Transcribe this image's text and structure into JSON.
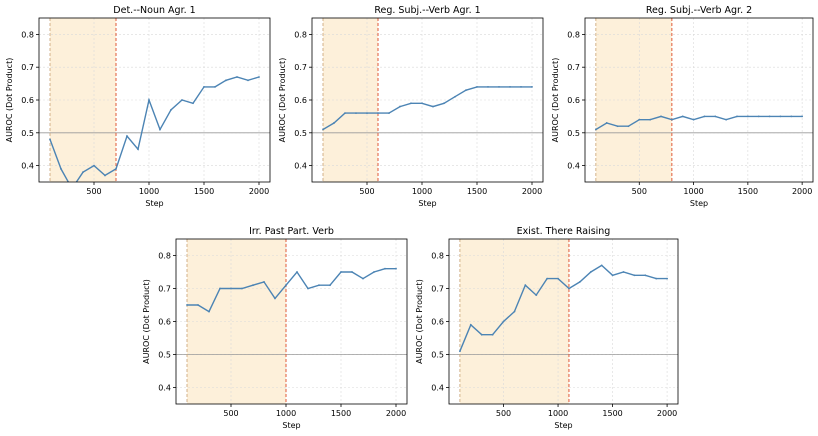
{
  "chart_data": [
    {
      "type": "line",
      "title": "Det.--Noun Agr. 1",
      "xlabel": "Step",
      "ylabel": "AUROC (Dot Product)",
      "xlim": [
        0,
        2100
      ],
      "ylim": [
        0.35,
        0.85
      ],
      "xticks": [
        500,
        1000,
        1500,
        2000
      ],
      "yticks": [
        0.4,
        0.5,
        0.6,
        0.7,
        0.8
      ],
      "reference_line": 0.5,
      "shaded_region": [
        100,
        700
      ],
      "grid": true,
      "line_color": "#4c84b4",
      "shade_color": "#fdf0da",
      "marker_color": "#e05a3a",
      "x": [
        100,
        200,
        300,
        400,
        500,
        600,
        700,
        800,
        900,
        1000,
        1100,
        1200,
        1300,
        1400,
        1500,
        1600,
        1700,
        1800,
        1900,
        2000
      ],
      "y": [
        0.48,
        0.39,
        0.33,
        0.38,
        0.4,
        0.37,
        0.39,
        0.49,
        0.45,
        0.6,
        0.51,
        0.57,
        0.6,
        0.59,
        0.64,
        0.64,
        0.66,
        0.67,
        0.66,
        0.67
      ]
    },
    {
      "type": "line",
      "title": "Reg. Subj.--Verb Agr. 1",
      "xlabel": "Step",
      "ylabel": "AUROC (Dot Product)",
      "xlim": [
        0,
        2100
      ],
      "ylim": [
        0.35,
        0.85
      ],
      "xticks": [
        500,
        1000,
        1500,
        2000
      ],
      "yticks": [
        0.4,
        0.5,
        0.6,
        0.7,
        0.8
      ],
      "reference_line": 0.5,
      "shaded_region": [
        100,
        600
      ],
      "grid": true,
      "line_color": "#4c84b4",
      "shade_color": "#fdf0da",
      "marker_color": "#e05a3a",
      "x": [
        100,
        200,
        300,
        400,
        500,
        600,
        700,
        800,
        900,
        1000,
        1100,
        1200,
        1300,
        1400,
        1500,
        1600,
        1700,
        1800,
        1900,
        2000
      ],
      "y": [
        0.51,
        0.53,
        0.56,
        0.56,
        0.56,
        0.56,
        0.56,
        0.58,
        0.59,
        0.59,
        0.58,
        0.59,
        0.61,
        0.63,
        0.64,
        0.64,
        0.64,
        0.64,
        0.64,
        0.64
      ]
    },
    {
      "type": "line",
      "title": "Reg. Subj.--Verb Agr. 2",
      "xlabel": "Step",
      "ylabel": "AUROC (Dot Product)",
      "xlim": [
        0,
        2100
      ],
      "ylim": [
        0.35,
        0.85
      ],
      "xticks": [
        500,
        1000,
        1500,
        2000
      ],
      "yticks": [
        0.4,
        0.5,
        0.6,
        0.7,
        0.8
      ],
      "reference_line": 0.5,
      "shaded_region": [
        100,
        800
      ],
      "grid": true,
      "line_color": "#4c84b4",
      "shade_color": "#fdf0da",
      "marker_color": "#e05a3a",
      "x": [
        100,
        200,
        300,
        400,
        500,
        600,
        700,
        800,
        900,
        1000,
        1100,
        1200,
        1300,
        1400,
        1500,
        1600,
        1700,
        1800,
        1900,
        2000
      ],
      "y": [
        0.51,
        0.53,
        0.52,
        0.52,
        0.54,
        0.54,
        0.55,
        0.54,
        0.55,
        0.54,
        0.55,
        0.55,
        0.54,
        0.55,
        0.55,
        0.55,
        0.55,
        0.55,
        0.55,
        0.55
      ]
    },
    {
      "type": "line",
      "title": "Irr. Past Part. Verb",
      "xlabel": "Step",
      "ylabel": "AUROC (Dot Product)",
      "xlim": [
        0,
        2100
      ],
      "ylim": [
        0.35,
        0.85
      ],
      "xticks": [
        500,
        1000,
        1500,
        2000
      ],
      "yticks": [
        0.4,
        0.5,
        0.6,
        0.7,
        0.8
      ],
      "reference_line": 0.5,
      "shaded_region": [
        100,
        1000
      ],
      "grid": true,
      "line_color": "#4c84b4",
      "shade_color": "#fdf0da",
      "marker_color": "#e05a3a",
      "x": [
        100,
        200,
        300,
        400,
        500,
        600,
        700,
        800,
        900,
        1000,
        1100,
        1200,
        1300,
        1400,
        1500,
        1600,
        1700,
        1800,
        1900,
        2000
      ],
      "y": [
        0.65,
        0.65,
        0.63,
        0.7,
        0.7,
        0.7,
        0.71,
        0.72,
        0.67,
        0.71,
        0.75,
        0.7,
        0.71,
        0.71,
        0.75,
        0.75,
        0.73,
        0.75,
        0.76,
        0.76
      ]
    },
    {
      "type": "line",
      "title": "Exist. There Raising",
      "xlabel": "Step",
      "ylabel": "AUROC (Dot Product)",
      "xlim": [
        0,
        2100
      ],
      "ylim": [
        0.35,
        0.85
      ],
      "xticks": [
        500,
        1000,
        1500,
        2000
      ],
      "yticks": [
        0.4,
        0.5,
        0.6,
        0.7,
        0.8
      ],
      "reference_line": 0.5,
      "shaded_region": [
        100,
        1100
      ],
      "grid": true,
      "line_color": "#4c84b4",
      "shade_color": "#fdf0da",
      "marker_color": "#e05a3a",
      "x": [
        100,
        200,
        300,
        400,
        500,
        600,
        700,
        800,
        900,
        1000,
        1100,
        1200,
        1300,
        1400,
        1500,
        1600,
        1700,
        1800,
        1900,
        2000
      ],
      "y": [
        0.51,
        0.59,
        0.56,
        0.56,
        0.6,
        0.63,
        0.71,
        0.68,
        0.73,
        0.73,
        0.7,
        0.72,
        0.75,
        0.77,
        0.74,
        0.75,
        0.74,
        0.74,
        0.73,
        0.73
      ]
    }
  ]
}
